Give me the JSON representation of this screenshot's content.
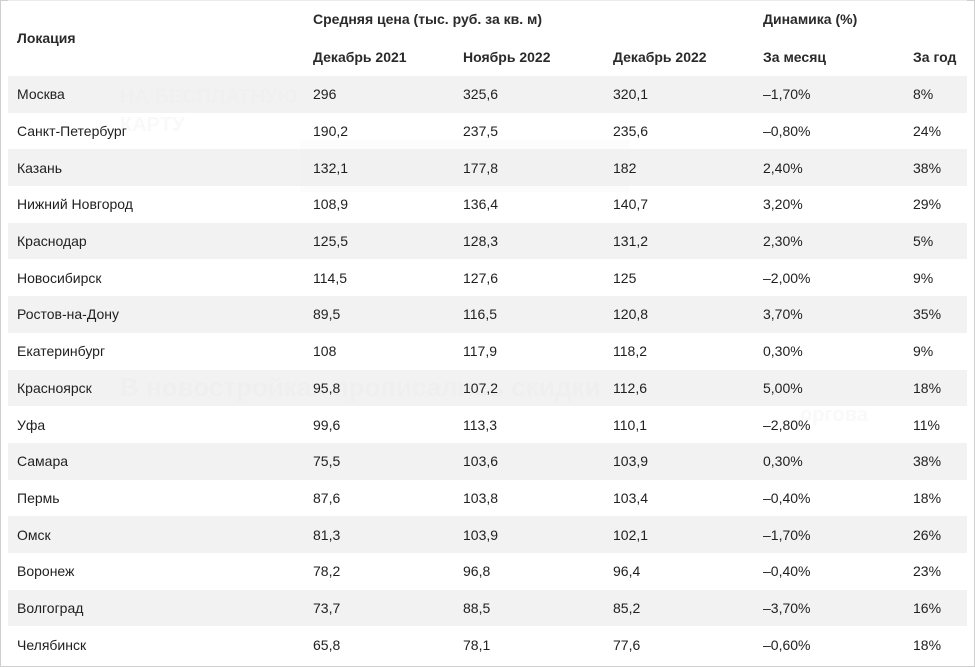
{
  "table": {
    "headers": {
      "location": "Локация",
      "avg_price": "Средняя цена (тыс. руб. за кв. м)",
      "dynamics": "Динамика (%)",
      "dec_2021": "Декабрь 2021",
      "nov_2022": "Ноябрь 2022",
      "dec_2022": "Декабрь 2022",
      "per_month": "За месяц",
      "per_year": "За год"
    },
    "rows": [
      {
        "city": "Москва",
        "dec2021": "296",
        "nov2022": "325,6",
        "dec2022": "320,1",
        "month": "–1,70%",
        "year": "8%"
      },
      {
        "city": "Санкт-Петербург",
        "dec2021": "190,2",
        "nov2022": "237,5",
        "dec2022": "235,6",
        "month": "–0,80%",
        "year": "24%"
      },
      {
        "city": "Казань",
        "dec2021": "132,1",
        "nov2022": "177,8",
        "dec2022": "182",
        "month": "2,40%",
        "year": "38%"
      },
      {
        "city": "Нижний Новгород",
        "dec2021": "108,9",
        "nov2022": "136,4",
        "dec2022": "140,7",
        "month": "3,20%",
        "year": "29%"
      },
      {
        "city": "Краснодар",
        "dec2021": "125,5",
        "nov2022": "128,3",
        "dec2022": "131,2",
        "month": "2,30%",
        "year": "5%"
      },
      {
        "city": "Новосибирск",
        "dec2021": "114,5",
        "nov2022": "127,6",
        "dec2022": "125",
        "month": "–2,00%",
        "year": "9%"
      },
      {
        "city": "Ростов-на-Дону",
        "dec2021": "89,5",
        "nov2022": "116,5",
        "dec2022": "120,8",
        "month": "3,70%",
        "year": "35%"
      },
      {
        "city": "Екатеринбург",
        "dec2021": "108",
        "nov2022": "117,9",
        "dec2022": "118,2",
        "month": "0,30%",
        "year": "9%"
      },
      {
        "city": "Красноярск",
        "dec2021": "95,8",
        "nov2022": "107,2",
        "dec2022": "112,6",
        "month": "5,00%",
        "year": "18%"
      },
      {
        "city": "Уфа",
        "dec2021": "99,6",
        "nov2022": "113,3",
        "dec2022": "110,1",
        "month": "–2,80%",
        "year": "11%"
      },
      {
        "city": "Самара",
        "dec2021": "75,5",
        "nov2022": "103,6",
        "dec2022": "103,9",
        "month": "0,30%",
        "year": "38%"
      },
      {
        "city": "Пермь",
        "dec2021": "87,6",
        "nov2022": "103,8",
        "dec2022": "103,4",
        "month": "–0,40%",
        "year": "18%"
      },
      {
        "city": "Омск",
        "dec2021": "81,3",
        "nov2022": "103,9",
        "dec2022": "102,1",
        "month": "–1,70%",
        "year": "26%"
      },
      {
        "city": "Воронеж",
        "dec2021": "78,2",
        "nov2022": "96,8",
        "dec2022": "96,4",
        "month": "–0,40%",
        "year": "23%"
      },
      {
        "city": "Волгоград",
        "dec2021": "73,7",
        "nov2022": "88,5",
        "dec2022": "85,2",
        "month": "–3,70%",
        "year": "16%"
      },
      {
        "city": "Челябинск",
        "dec2021": "65,8",
        "nov2022": "78,1",
        "dec2022": "77,6",
        "month": "–0,60%",
        "year": "18%"
      }
    ]
  },
  "background_text": {
    "headline": "В новостройках прописались скидки",
    "side_title": "оргова",
    "promo": "НА БЕСПЛАТНУЮ",
    "promo_card": "КАРТУ"
  }
}
